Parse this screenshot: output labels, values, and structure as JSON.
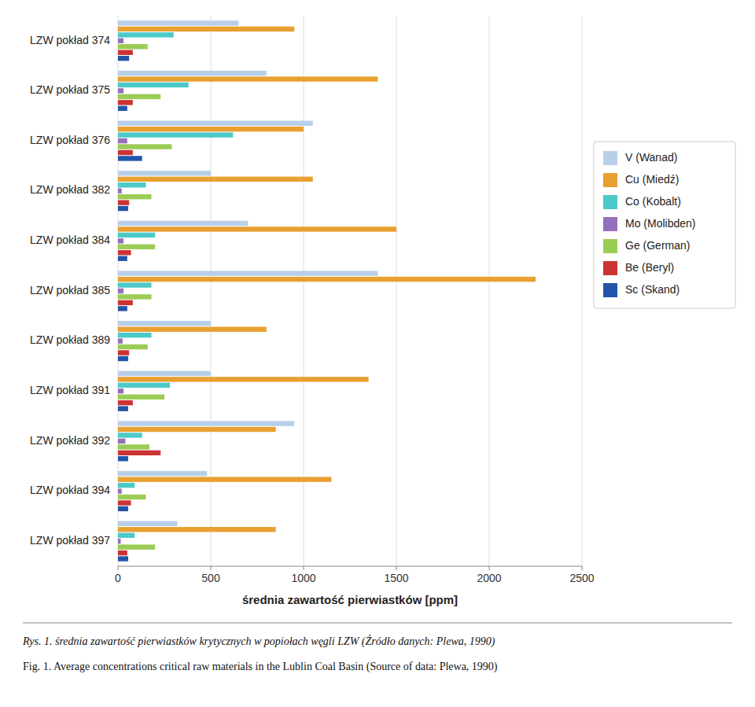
{
  "chart_data": {
    "type": "bar",
    "orientation": "horizontal",
    "xlabel": "średnia zawartość pierwiastków [ppm]",
    "annotations": [
      "Rys. 1. średnia zawartość pierwiastków krytycznych w popiołach węgli LZW (Źródło danych: Plewa, 1990)",
      "Fig. 1. Average concentrations critical raw materials in the Lublin Coal Basin (Source of data: Plewa, 1990)"
    ],
    "categories": [
      "LZW pokład 374",
      "LZW pokład 375",
      "LZW pokład 376",
      "LZW pokład 382",
      "LZW pokład 384",
      "LZW pokład 385",
      "LZW pokład 389",
      "LZW pokład 391",
      "LZW pokład 392",
      "LZW pokład 394",
      "LZW pokład 397"
    ],
    "series": [
      {
        "name": "V (Wanad)",
        "color": "#b8cfe8",
        "values": [
          650,
          800,
          1050,
          500,
          700,
          1400,
          500,
          500,
          950,
          480,
          320
        ]
      },
      {
        "name": "Cu (Miedź)",
        "color": "#e8a030",
        "values": [
          950,
          1400,
          1000,
          1050,
          1500,
          2250,
          800,
          1350,
          850,
          1150,
          850
        ]
      },
      {
        "name": "Co (Kobalt)",
        "color": "#4ec9c9",
        "values": [
          300,
          380,
          620,
          150,
          200,
          180,
          180,
          280,
          130,
          90,
          90
        ]
      },
      {
        "name": "Mo (Molibden)",
        "color": "#9370bb",
        "values": [
          30,
          30,
          50,
          20,
          30,
          30,
          25,
          30,
          40,
          20,
          15
        ]
      },
      {
        "name": "Ge (German)",
        "color": "#9bcc55",
        "values": [
          160,
          230,
          290,
          180,
          200,
          180,
          160,
          250,
          170,
          150,
          200
        ]
      },
      {
        "name": "Be (Beryl)",
        "color": "#cc3333",
        "values": [
          80,
          80,
          80,
          60,
          70,
          80,
          60,
          80,
          230,
          70,
          50
        ]
      },
      {
        "name": "Sc (Skand)",
        "color": "#2255aa",
        "values": [
          60,
          50,
          130,
          55,
          50,
          50,
          55,
          55,
          55,
          55,
          55
        ]
      }
    ],
    "xlim": [
      0,
      2500
    ],
    "xticks": [
      0,
      500,
      1000,
      1500,
      2000,
      2500
    ],
    "grid": true,
    "legend": "right"
  }
}
